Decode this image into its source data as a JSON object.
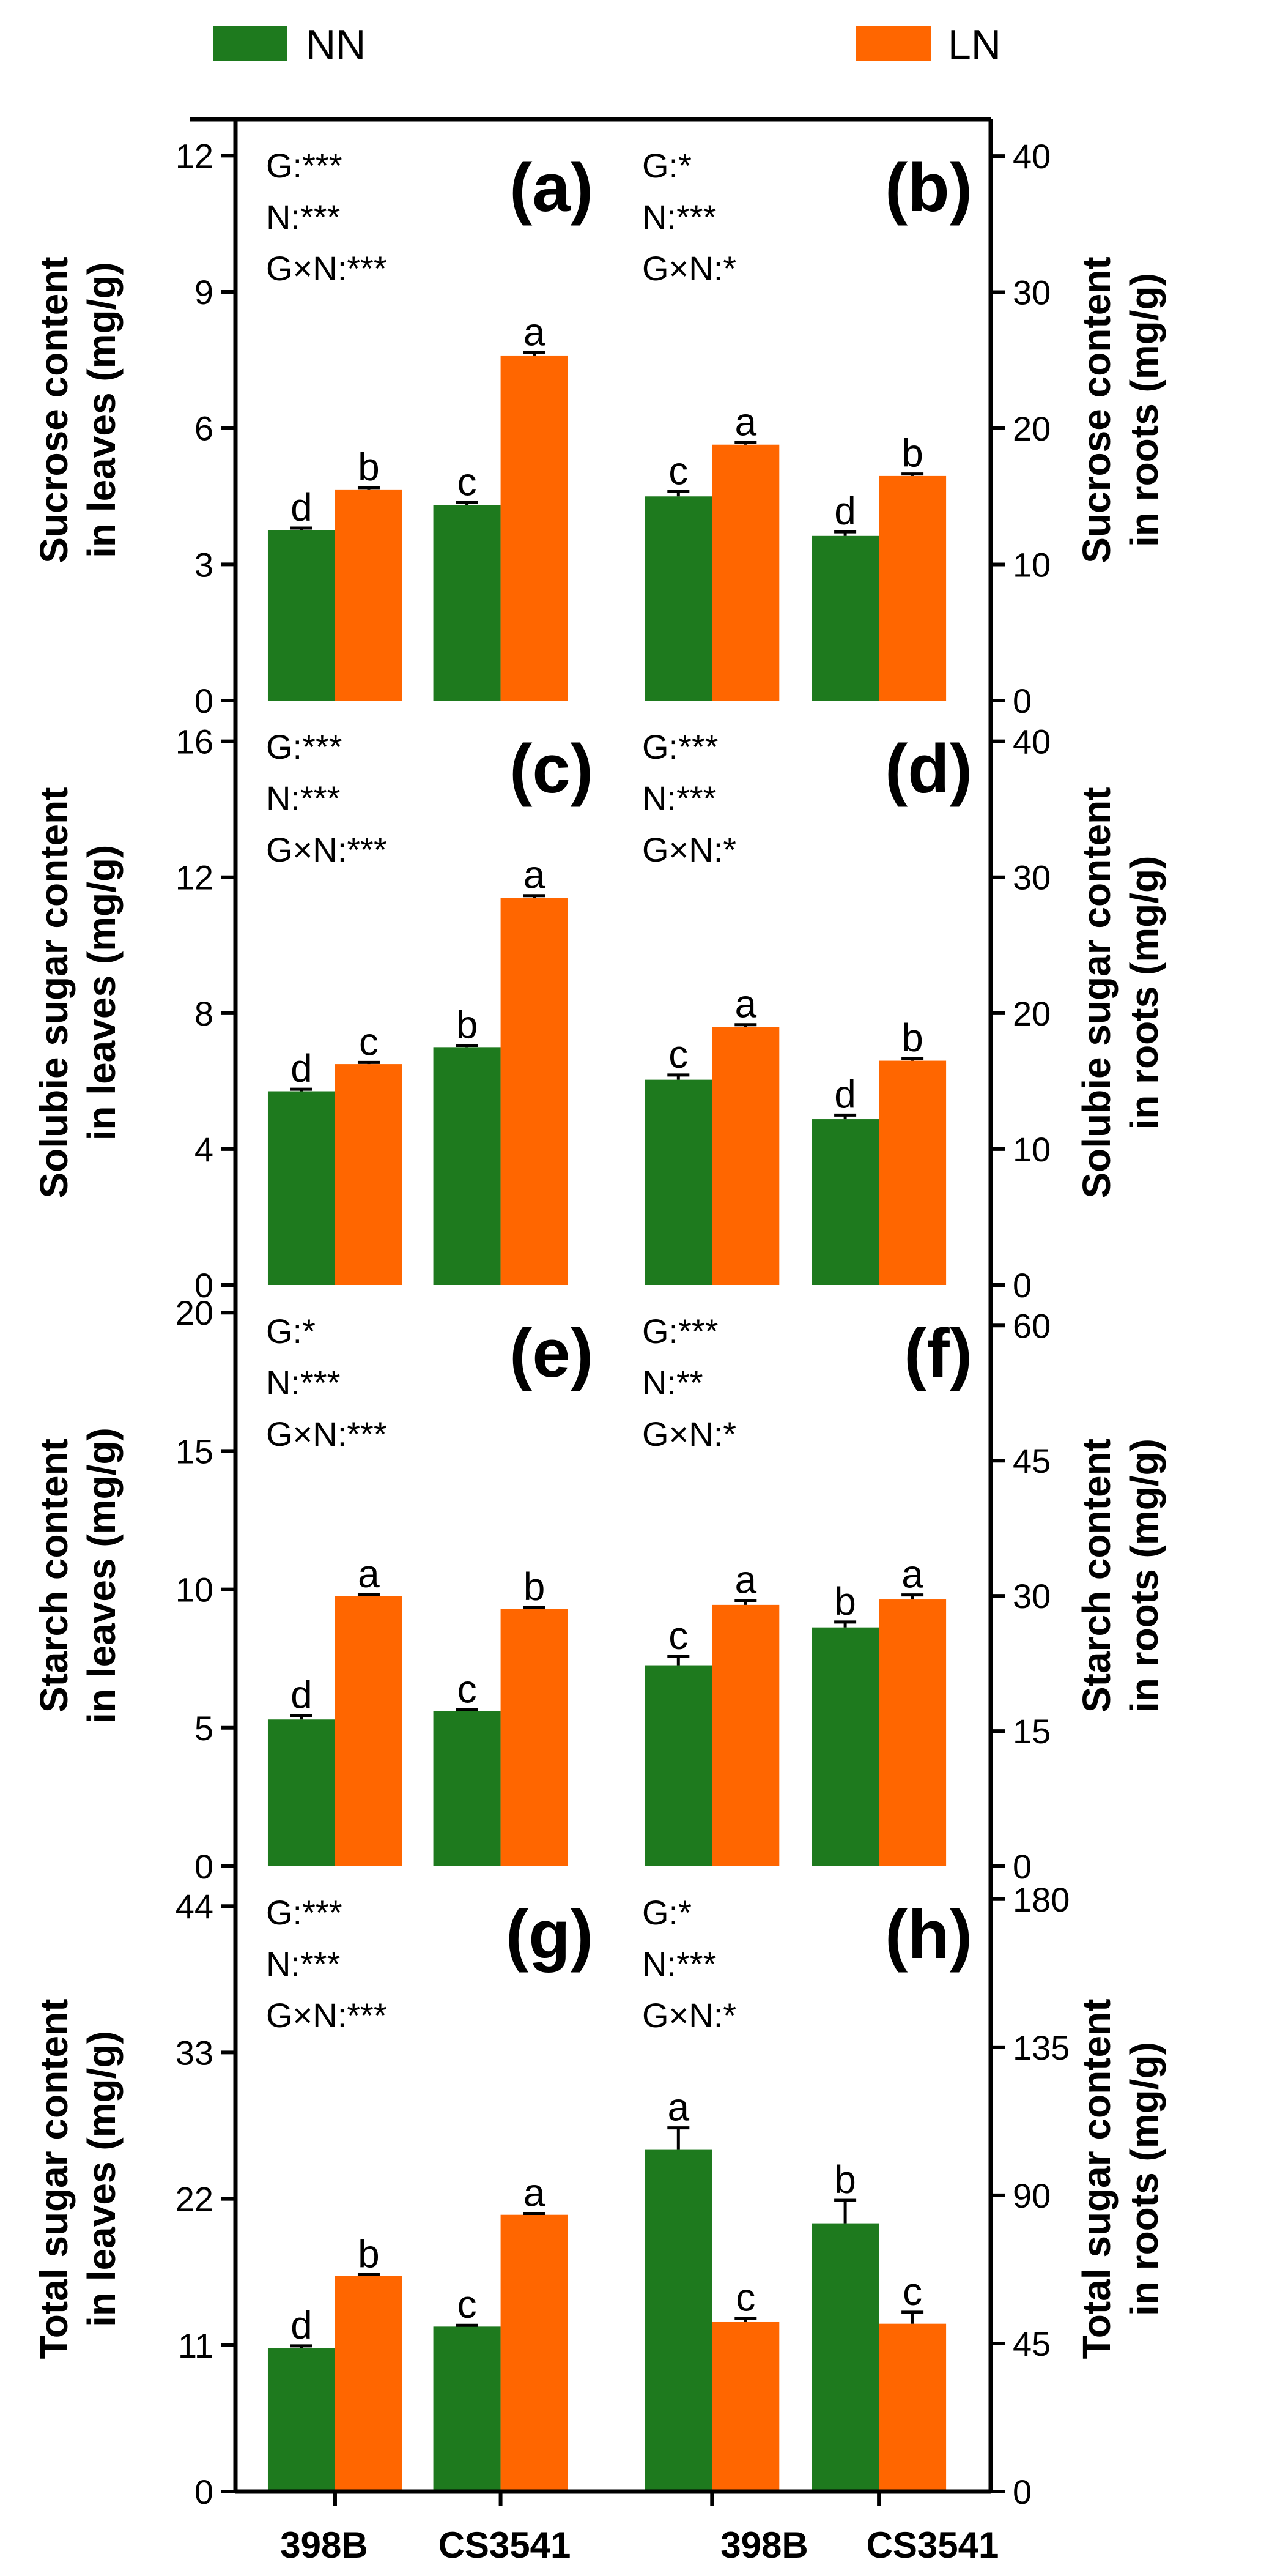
{
  "legend": {
    "items": [
      {
        "label": "NN",
        "color": "#1e7a1e"
      },
      {
        "label": "LN",
        "color": "#ff6600"
      }
    ]
  },
  "genotypes": [
    "398B",
    "CS3541",
    "398B",
    "CS3541"
  ],
  "chart_data": [
    {
      "type": "bar",
      "panel": "(a)",
      "side": "left",
      "ylabel": [
        "Sucrose content",
        "in leaves (mg/g)"
      ],
      "ylim": [
        0,
        12.8
      ],
      "yticks": [
        0,
        3,
        6,
        9,
        12
      ],
      "categories": [
        "398B",
        "CS3541"
      ],
      "series": [
        {
          "name": "NN",
          "values": [
            3.75,
            4.3
          ],
          "errors": [
            0.05,
            0.06
          ],
          "letters": [
            "d",
            "c"
          ]
        },
        {
          "name": "LN",
          "values": [
            4.65,
            7.6
          ],
          "errors": [
            0.04,
            0.06
          ],
          "letters": [
            "b",
            "a"
          ]
        }
      ],
      "stats": [
        "G:***",
        "N:***",
        "G×N:***"
      ]
    },
    {
      "type": "bar",
      "panel": "(b)",
      "side": "right",
      "ylabel": [
        "Sucrose content",
        "in roots (mg/g)"
      ],
      "ylim": [
        0,
        42.7
      ],
      "yticks": [
        0,
        10,
        20,
        30,
        40
      ],
      "categories": [
        "398B",
        "CS3541"
      ],
      "series": [
        {
          "name": "NN",
          "values": [
            15.0,
            12.1
          ],
          "errors": [
            0.35,
            0.3
          ],
          "letters": [
            "c",
            "d"
          ]
        },
        {
          "name": "LN",
          "values": [
            18.8,
            16.5
          ],
          "errors": [
            0.15,
            0.15
          ],
          "letters": [
            "a",
            "b"
          ]
        }
      ],
      "stats": [
        "G:*",
        "N:***",
        "G×N:*"
      ]
    },
    {
      "type": "bar",
      "panel": "(c)",
      "side": "left",
      "ylabel": [
        "Solubie sugar content",
        "in leaves (mg/g)"
      ],
      "ylim": [
        0,
        17.2
      ],
      "yticks": [
        0,
        4,
        8,
        12,
        16
      ],
      "categories": [
        "398B",
        "CS3541"
      ],
      "series": [
        {
          "name": "NN",
          "values": [
            5.7,
            7.0
          ],
          "errors": [
            0.06,
            0.05
          ],
          "letters": [
            "d",
            "b"
          ]
        },
        {
          "name": "LN",
          "values": [
            6.5,
            11.4
          ],
          "errors": [
            0.05,
            0.06
          ],
          "letters": [
            "c",
            "a"
          ]
        }
      ],
      "stats": [
        "G:***",
        "N:***",
        "G×N:***"
      ]
    },
    {
      "type": "bar",
      "panel": "(d)",
      "side": "right",
      "ylabel": [
        "Solubie sugar content",
        "in roots (mg/g)"
      ],
      "ylim": [
        0,
        43
      ],
      "yticks": [
        0,
        10,
        20,
        30,
        40
      ],
      "categories": [
        "398B",
        "CS3541"
      ],
      "series": [
        {
          "name": "NN",
          "values": [
            15.1,
            12.2
          ],
          "errors": [
            0.35,
            0.3
          ],
          "letters": [
            "c",
            "d"
          ]
        },
        {
          "name": "LN",
          "values": [
            19.0,
            16.5
          ],
          "errors": [
            0.15,
            0.15
          ],
          "letters": [
            "a",
            "b"
          ]
        }
      ],
      "stats": [
        "G:***",
        "N:***",
        "G×N:*"
      ]
    },
    {
      "type": "bar",
      "panel": "(e)",
      "side": "left",
      "ylabel": [
        "Starch content",
        "in leaves (mg/g)"
      ],
      "ylim": [
        0,
        21
      ],
      "yticks": [
        0,
        5,
        10,
        15,
        20
      ],
      "categories": [
        "398B",
        "CS3541"
      ],
      "series": [
        {
          "name": "NN",
          "values": [
            5.3,
            5.6
          ],
          "errors": [
            0.15,
            0.05
          ],
          "letters": [
            "d",
            "c"
          ]
        },
        {
          "name": "LN",
          "values": [
            9.75,
            9.3
          ],
          "errors": [
            0.06,
            0.05
          ],
          "letters": [
            "a",
            "b"
          ]
        }
      ],
      "stats": [
        "G:*",
        "N:***",
        "G×N:***"
      ]
    },
    {
      "type": "bar",
      "panel": "(f)",
      "side": "right",
      "ylabel": [
        "Starch content",
        "in roots (mg/g)"
      ],
      "ylim": [
        0,
        64.5
      ],
      "yticks": [
        0,
        15,
        30,
        45,
        60
      ],
      "categories": [
        "398B",
        "CS3541"
      ],
      "series": [
        {
          "name": "NN",
          "values": [
            22.3,
            26.5
          ],
          "errors": [
            1.0,
            0.6
          ],
          "letters": [
            "c",
            "b"
          ]
        },
        {
          "name": "LN",
          "values": [
            29.0,
            29.6
          ],
          "errors": [
            0.5,
            0.5
          ],
          "letters": [
            "a",
            "a"
          ]
        }
      ],
      "stats": [
        "G:***",
        "N:**",
        "G×N:*"
      ]
    },
    {
      "type": "bar",
      "panel": "(g)",
      "side": "left",
      "ylabel": [
        "Total sugar content",
        "in leaves (mg/g)"
      ],
      "ylim": [
        0,
        47
      ],
      "yticks": [
        0,
        11,
        22,
        33,
        44
      ],
      "categories": [
        "398B",
        "CS3541"
      ],
      "series": [
        {
          "name": "NN",
          "values": [
            10.8,
            12.4
          ],
          "errors": [
            0.15,
            0.1
          ],
          "letters": [
            "d",
            "c"
          ]
        },
        {
          "name": "LN",
          "values": [
            16.2,
            20.8
          ],
          "errors": [
            0.1,
            0.1
          ],
          "letters": [
            "b",
            "a"
          ]
        }
      ],
      "stats": [
        "G:***",
        "N:***",
        "G×N:***"
      ]
    },
    {
      "type": "bar",
      "panel": "(h)",
      "side": "right",
      "ylabel": [
        "Total sugar content",
        "in roots (mg/g)"
      ],
      "ylim": [
        0,
        190
      ],
      "yticks": [
        0,
        45,
        90,
        135,
        180
      ],
      "categories": [
        "398B",
        "CS3541"
      ],
      "series": [
        {
          "name": "NN",
          "values": [
            104,
            81.5
          ],
          "errors": [
            6.5,
            7.0
          ],
          "letters": [
            "a",
            "b"
          ]
        },
        {
          "name": "LN",
          "values": [
            51.5,
            51
          ],
          "errors": [
            1.2,
            3.5
          ],
          "letters": [
            "c",
            "c"
          ]
        }
      ],
      "stats": [
        "G:*",
        "N:***",
        "G×N:*"
      ]
    }
  ]
}
